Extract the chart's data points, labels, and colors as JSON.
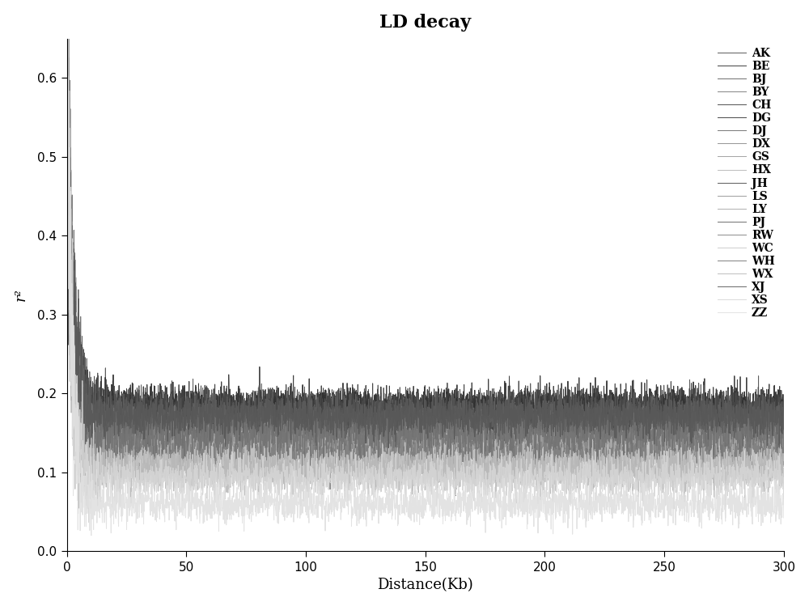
{
  "title": "LD decay",
  "xlabel": "Distance(Kb)",
  "ylabel": "r²",
  "xlim": [
    0,
    300
  ],
  "ylim": [
    0.0,
    0.65
  ],
  "yticks": [
    0.0,
    0.1,
    0.2,
    0.3,
    0.4,
    0.5,
    0.6
  ],
  "xticks": [
    0,
    50,
    100,
    150,
    200,
    250,
    300
  ],
  "x_max": 300,
  "n_points": 3000,
  "labels": [
    "AK",
    "BE",
    "BJ",
    "BY",
    "CH",
    "DG",
    "DJ",
    "DX",
    "GS",
    "HX",
    "JH",
    "LS",
    "LY",
    "PJ",
    "RW",
    "WC",
    "WH",
    "WX",
    "XJ",
    "XS",
    "ZZ"
  ],
  "colors": [
    "#4a4a4a",
    "#2a2a2a",
    "#5e5e5e",
    "#757575",
    "#3d3d3d",
    "#333333",
    "#686868",
    "#8a8a8a",
    "#9a9a9a",
    "#b5b5b5",
    "#484848",
    "#929292",
    "#a8a8a8",
    "#606060",
    "#7e7e7e",
    "#c8c8c8",
    "#727272",
    "#b8b8b8",
    "#585858",
    "#d5d5d5",
    "#e0e0e0"
  ],
  "plateau_values": [
    0.175,
    0.185,
    0.162,
    0.155,
    0.17,
    0.18,
    0.165,
    0.145,
    0.138,
    0.13,
    0.178,
    0.135,
    0.125,
    0.168,
    0.122,
    0.108,
    0.148,
    0.102,
    0.172,
    0.092,
    0.06
  ],
  "peak_value": 0.64,
  "noise_scale": 0.012,
  "background_color": "#ffffff",
  "title_fontsize": 16,
  "label_fontsize": 13,
  "tick_fontsize": 11,
  "legend_fontsize": 10,
  "linewidth": 0.7
}
